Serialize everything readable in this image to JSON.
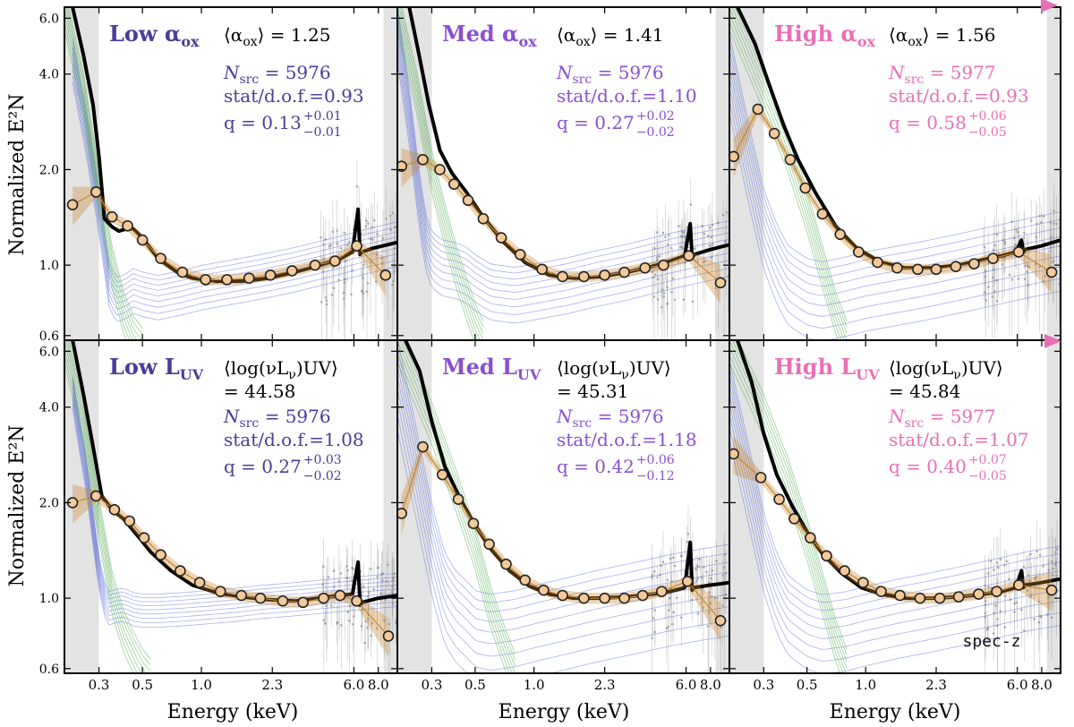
{
  "colors": {
    "low": "#4b3b9a",
    "med": "#8a4fd0",
    "high": "#e86fb5",
    "model_black": "#000000",
    "blue_component": "#3f55d6",
    "green_component": "#3aa23a",
    "stack_orange": "#c8862e",
    "stack_marker_fill": "#f3c99a",
    "band_shade": "#e3e3e3",
    "data_grey": "#9a9a9a"
  },
  "axes": {
    "ylabel": "Normalized E²N",
    "xlabel": "Energy (keV)",
    "x_ticks": [
      "0.3",
      "0.5",
      "1.0",
      "2.3",
      "6.0",
      "8.0"
    ],
    "y_ticks": [
      "0.6",
      "1.0",
      "2.0",
      "4.0",
      "6.0"
    ]
  },
  "annotation": {
    "spec_z": "spec-z"
  },
  "chart_data": [
    {
      "type": "line",
      "row": 1,
      "col": 1,
      "group": "low",
      "title": "Low α",
      "title_sub": "ox",
      "mean_line1": "⟨α",
      "mean_sub": "ox",
      "mean_line1_end": "⟩ = 1.25",
      "mean_line2": "",
      "nsrc": "N",
      "nsrc_sub": "src",
      "nsrc_val": " = 5976",
      "stat": "stat/d.o.f.=0.93",
      "q": "q = 0.13",
      "q_sup": "+0.01",
      "q_sub": "−0.01",
      "xlim": [
        0.2,
        10
      ],
      "ylim": [
        0.58,
        6.5
      ],
      "stack_points": {
        "x": [
          0.22,
          0.29,
          0.35,
          0.42,
          0.5,
          0.62,
          0.8,
          1.05,
          1.35,
          1.75,
          2.25,
          2.9,
          3.8,
          4.8,
          6.2,
          8.7
        ],
        "y": [
          1.55,
          1.7,
          1.42,
          1.33,
          1.2,
          1.05,
          0.95,
          0.9,
          0.9,
          0.91,
          0.93,
          0.96,
          1.0,
          1.03,
          1.15,
          0.93
        ]
      },
      "model": {
        "x": [
          0.22,
          0.25,
          0.28,
          0.3,
          0.32,
          0.35,
          0.38,
          0.41,
          0.45,
          0.5,
          0.6,
          0.75,
          0.9,
          1.2,
          1.6,
          2.2,
          3.0,
          4.0,
          5.0,
          5.9,
          6.3,
          6.45,
          6.6,
          7.5,
          10.0
        ],
        "y": [
          6.5,
          4.6,
          3.2,
          2.2,
          1.4,
          1.32,
          1.28,
          1.3,
          1.3,
          1.22,
          1.05,
          0.95,
          0.91,
          0.89,
          0.89,
          0.91,
          0.95,
          1.0,
          1.04,
          1.1,
          1.5,
          1.08,
          1.1,
          1.13,
          1.18
        ]
      },
      "blue": {
        "x": [
          0.22,
          0.26,
          0.3,
          0.34,
          0.37,
          0.4,
          0.45,
          0.5,
          0.6,
          0.8,
          1.0,
          1.5,
          2.0,
          3.0,
          5.0,
          7.0,
          10.0
        ],
        "y": [
          4.5,
          2.6,
          1.5,
          0.86,
          0.79,
          0.8,
          0.84,
          0.82,
          0.8,
          0.83,
          0.86,
          0.9,
          0.93,
          0.98,
          1.06,
          1.12,
          1.18
        ]
      },
      "blue_spread": 0.04,
      "green": {
        "x": [
          0.2,
          0.25,
          0.3,
          0.35,
          0.4,
          0.45,
          0.5
        ],
        "y": [
          6.5,
          3.5,
          1.7,
          1.0,
          0.72,
          0.6,
          0.55
        ]
      }
    },
    {
      "type": "line",
      "row": 1,
      "col": 2,
      "group": "med",
      "title": "Med α",
      "title_sub": "ox",
      "mean_line1": "⟨α",
      "mean_sub": "ox",
      "mean_line1_end": "⟩ = 1.41",
      "mean_line2": "",
      "nsrc": "N",
      "nsrc_sub": "src",
      "nsrc_val": " = 5976",
      "stat": "stat/d.o.f.=1.10",
      "q": "q = 0.27",
      "q_sup": "+0.02",
      "q_sub": "−0.02",
      "xlim": [
        0.2,
        10
      ],
      "ylim": [
        0.58,
        6.5
      ],
      "stack_points": {
        "x": [
          0.21,
          0.27,
          0.33,
          0.39,
          0.46,
          0.55,
          0.68,
          0.85,
          1.1,
          1.4,
          1.8,
          2.3,
          2.9,
          3.7,
          4.6,
          6.2,
          9.0
        ],
        "y": [
          2.05,
          2.15,
          2.0,
          1.8,
          1.6,
          1.4,
          1.22,
          1.08,
          0.97,
          0.92,
          0.92,
          0.93,
          0.95,
          0.98,
          1.0,
          1.07,
          0.88
        ]
      },
      "model": {
        "x": [
          0.23,
          0.26,
          0.29,
          0.33,
          0.38,
          0.45,
          0.55,
          0.7,
          0.9,
          1.2,
          1.6,
          2.2,
          3.0,
          4.0,
          5.0,
          5.9,
          6.3,
          6.45,
          6.6,
          8.0,
          10.0
        ],
        "y": [
          6.5,
          4.5,
          3.2,
          2.3,
          1.95,
          1.7,
          1.42,
          1.18,
          1.02,
          0.93,
          0.91,
          0.92,
          0.95,
          0.99,
          1.03,
          1.07,
          1.35,
          1.05,
          1.08,
          1.12,
          1.16
        ]
      },
      "blue": {
        "x": [
          0.2,
          0.23,
          0.26,
          0.28,
          0.3,
          0.34,
          0.4,
          0.45,
          0.5,
          0.6,
          0.8,
          1.0,
          1.5,
          2.0,
          3.0,
          5.0,
          7.0,
          10.0
        ],
        "y": [
          5.5,
          3.0,
          1.6,
          1.2,
          1.06,
          1.0,
          0.98,
          0.95,
          0.9,
          0.84,
          0.82,
          0.84,
          0.88,
          0.92,
          0.97,
          1.05,
          1.1,
          1.15
        ]
      },
      "blue_spread": 0.05,
      "green": {
        "x": [
          0.2,
          0.25,
          0.3,
          0.35,
          0.4,
          0.45,
          0.5,
          0.55
        ],
        "y": [
          6.5,
          3.6,
          2.0,
          1.35,
          1.0,
          0.8,
          0.66,
          0.58
        ]
      }
    },
    {
      "type": "line",
      "row": 1,
      "col": 3,
      "group": "high",
      "title": "High α",
      "title_sub": "ox",
      "mean_line1": "⟨α",
      "mean_sub": "ox",
      "mean_line1_end": "⟩ = 1.56",
      "mean_line2": "",
      "nsrc": "N",
      "nsrc_sub": "src",
      "nsrc_val": " = 5977",
      "stat": "stat/d.o.f.=0.93",
      "q": "q = 0.58",
      "q_sup": "+0.06",
      "q_sub": "−0.05",
      "xlim": [
        0.2,
        10
      ],
      "ylim": [
        0.58,
        6.5
      ],
      "stack_points": {
        "x": [
          0.21,
          0.28,
          0.34,
          0.41,
          0.49,
          0.6,
          0.74,
          0.92,
          1.15,
          1.45,
          1.85,
          2.3,
          2.9,
          3.6,
          4.5,
          6.1,
          9.0
        ],
        "y": [
          2.2,
          3.1,
          2.6,
          2.15,
          1.75,
          1.45,
          1.25,
          1.1,
          1.02,
          0.98,
          0.97,
          0.97,
          0.99,
          1.01,
          1.05,
          1.1,
          0.95
        ]
      },
      "model": {
        "x": [
          0.22,
          0.27,
          0.32,
          0.38,
          0.45,
          0.55,
          0.7,
          0.9,
          1.2,
          1.6,
          2.2,
          3.0,
          4.0,
          5.0,
          5.9,
          6.3,
          6.45,
          6.6,
          8.0,
          10.0
        ],
        "y": [
          6.5,
          5.0,
          3.7,
          2.75,
          2.15,
          1.7,
          1.33,
          1.13,
          1.02,
          0.98,
          0.98,
          1.0,
          1.04,
          1.07,
          1.1,
          1.2,
          1.1,
          1.12,
          1.15,
          1.2
        ]
      },
      "blue": {
        "x": [
          0.2,
          0.25,
          0.3,
          0.35,
          0.4,
          0.5,
          0.6,
          0.8,
          1.0,
          1.5,
          2.0,
          3.0,
          5.0,
          7.0,
          10.0
        ],
        "y": [
          4.2,
          2.2,
          1.35,
          1.05,
          0.9,
          0.82,
          0.8,
          0.83,
          0.86,
          0.9,
          0.93,
          0.98,
          1.05,
          1.1,
          1.15
        ]
      },
      "blue_spread": 0.07,
      "green": {
        "x": [
          0.2,
          0.3,
          0.4,
          0.5,
          0.6,
          0.7,
          0.8
        ],
        "y": [
          6.5,
          3.6,
          2.3,
          1.5,
          1.0,
          0.72,
          0.58
        ]
      }
    },
    {
      "type": "line",
      "row": 2,
      "col": 1,
      "group": "low",
      "title": "Low L",
      "title_sub": "UV",
      "mean_line1": "⟨log(νL",
      "mean_sub": "ν",
      "mean_line1_end": ")UV⟩",
      "mean_line2": "= 44.58",
      "nsrc": "N",
      "nsrc_sub": "src",
      "nsrc_val": " = 5976",
      "stat": "stat/d.o.f.=1.08",
      "q": "q = 0.27",
      "q_sup": "+0.03",
      "q_sub": "−0.02",
      "xlim": [
        0.2,
        10
      ],
      "ylim": [
        0.58,
        6.5
      ],
      "stack_points": {
        "x": [
          0.22,
          0.29,
          0.36,
          0.43,
          0.51,
          0.62,
          0.78,
          0.98,
          1.25,
          1.6,
          2.0,
          2.6,
          3.3,
          4.2,
          5.1,
          6.2,
          9.0
        ],
        "y": [
          2.0,
          2.1,
          1.9,
          1.75,
          1.55,
          1.37,
          1.22,
          1.12,
          1.05,
          1.02,
          1.0,
          0.98,
          0.97,
          1.0,
          1.02,
          0.98,
          0.76
        ]
      },
      "model": {
        "x": [
          0.22,
          0.25,
          0.28,
          0.31,
          0.35,
          0.4,
          0.47,
          0.55,
          0.7,
          0.9,
          1.2,
          1.6,
          2.2,
          3.0,
          4.0,
          5.0,
          5.9,
          6.3,
          6.45,
          6.6,
          8.0,
          10.0
        ],
        "y": [
          6.5,
          4.4,
          3.0,
          2.1,
          1.9,
          1.78,
          1.58,
          1.4,
          1.22,
          1.1,
          1.04,
          1.01,
          0.99,
          0.98,
          1.0,
          1.02,
          1.03,
          1.3,
          0.95,
          0.97,
          1.0,
          1.02
        ]
      },
      "blue": {
        "x": [
          0.22,
          0.26,
          0.3,
          0.33,
          0.36,
          0.4,
          0.45,
          0.5,
          0.6,
          0.8,
          1.0,
          1.5,
          2.0,
          3.0,
          5.0,
          7.0,
          10.0
        ],
        "y": [
          4.5,
          2.4,
          1.2,
          0.93,
          0.95,
          0.96,
          0.93,
          0.92,
          0.92,
          0.93,
          0.94,
          0.96,
          0.98,
          1.0,
          1.03,
          1.05,
          1.07
        ]
      },
      "blue_spread": 0.03,
      "green": {
        "x": [
          0.2,
          0.25,
          0.3,
          0.35,
          0.4,
          0.45,
          0.5,
          0.55
        ],
        "y": [
          6.5,
          3.6,
          1.8,
          1.05,
          0.8,
          0.68,
          0.6,
          0.56
        ]
      }
    },
    {
      "type": "line",
      "row": 2,
      "col": 2,
      "group": "med",
      "title": "Med L",
      "title_sub": "UV",
      "mean_line1": "⟨log(νL",
      "mean_sub": "ν",
      "mean_line1_end": ")UV⟩",
      "mean_line2": "= 45.31",
      "nsrc": "N",
      "nsrc_sub": "src",
      "nsrc_val": " = 5976",
      "stat": "stat/d.o.f.=1.18",
      "q": "q = 0.42",
      "q_sup": "+0.06",
      "q_sub": "−0.12",
      "xlim": [
        0.2,
        10
      ],
      "ylim": [
        0.58,
        6.5
      ],
      "stack_points": {
        "x": [
          0.21,
          0.27,
          0.34,
          0.41,
          0.49,
          0.59,
          0.72,
          0.9,
          1.12,
          1.4,
          1.8,
          2.3,
          2.9,
          3.6,
          4.5,
          6.1,
          9.0
        ],
        "y": [
          1.85,
          3.0,
          2.45,
          2.05,
          1.72,
          1.48,
          1.28,
          1.14,
          1.06,
          1.02,
          1.0,
          1.0,
          1.0,
          1.02,
          1.05,
          1.13,
          0.85
        ]
      },
      "model": {
        "x": [
          0.22,
          0.26,
          0.3,
          0.35,
          0.42,
          0.5,
          0.6,
          0.75,
          0.95,
          1.2,
          1.6,
          2.2,
          3.0,
          4.0,
          5.0,
          5.9,
          6.3,
          6.45,
          6.6,
          8.0,
          10.0
        ],
        "y": [
          6.5,
          5.2,
          3.6,
          2.6,
          2.05,
          1.7,
          1.43,
          1.22,
          1.09,
          1.03,
          1.0,
          1.0,
          1.01,
          1.03,
          1.05,
          1.08,
          1.5,
          1.06,
          1.08,
          1.1,
          1.12
        ]
      },
      "blue": {
        "x": [
          0.2,
          0.25,
          0.3,
          0.35,
          0.4,
          0.45,
          0.5,
          0.6,
          0.8,
          1.0,
          1.5,
          2.0,
          3.0,
          5.0,
          7.0,
          10.0
        ],
        "y": [
          5.0,
          2.6,
          1.5,
          1.05,
          0.92,
          0.86,
          0.8,
          0.78,
          0.8,
          0.83,
          0.88,
          0.92,
          0.97,
          1.04,
          1.08,
          1.12
        ]
      },
      "blue_spread": 0.08,
      "green": {
        "x": [
          0.2,
          0.3,
          0.4,
          0.5,
          0.6,
          0.7,
          0.8
        ],
        "y": [
          6.5,
          3.6,
          2.2,
          1.45,
          0.95,
          0.72,
          0.58
        ]
      }
    },
    {
      "type": "line",
      "row": 2,
      "col": 3,
      "group": "high",
      "title": "High L",
      "title_sub": "UV",
      "mean_line1": "⟨log(νL",
      "mean_sub": "ν",
      "mean_line1_end": ")UV⟩",
      "mean_line2": "= 45.84",
      "nsrc": "N",
      "nsrc_sub": "src",
      "nsrc_val": " = 5977",
      "stat": "stat/d.o.f.=1.07",
      "q": "q = 0.40",
      "q_sup": "+0.07",
      "q_sub": "−0.05",
      "xlim": [
        0.2,
        10
      ],
      "ylim": [
        0.58,
        6.5
      ],
      "stack_points": {
        "x": [
          0.21,
          0.29,
          0.36,
          0.43,
          0.52,
          0.63,
          0.78,
          0.97,
          1.2,
          1.5,
          1.9,
          2.4,
          3.0,
          3.8,
          4.7,
          6.1,
          9.0
        ],
        "y": [
          2.85,
          2.4,
          2.05,
          1.78,
          1.55,
          1.36,
          1.22,
          1.12,
          1.05,
          1.02,
          1.0,
          1.0,
          1.01,
          1.03,
          1.05,
          1.1,
          1.06
        ]
      },
      "model": {
        "x": [
          0.22,
          0.26,
          0.3,
          0.35,
          0.42,
          0.5,
          0.6,
          0.75,
          0.95,
          1.2,
          1.6,
          2.2,
          3.0,
          4.0,
          5.0,
          5.9,
          6.3,
          6.45,
          6.6,
          8.0,
          10.0
        ],
        "y": [
          6.5,
          4.8,
          3.3,
          2.45,
          1.95,
          1.62,
          1.38,
          1.2,
          1.08,
          1.03,
          1.0,
          1.0,
          1.01,
          1.03,
          1.05,
          1.08,
          1.22,
          1.08,
          1.1,
          1.12,
          1.15
        ]
      },
      "blue": {
        "x": [
          0.2,
          0.25,
          0.3,
          0.35,
          0.4,
          0.5,
          0.6,
          0.8,
          1.0,
          1.5,
          2.0,
          3.0,
          5.0,
          7.0,
          10.0
        ],
        "y": [
          4.4,
          2.4,
          1.45,
          1.08,
          0.92,
          0.83,
          0.8,
          0.82,
          0.85,
          0.9,
          0.93,
          0.98,
          1.05,
          1.1,
          1.14
        ]
      },
      "blue_spread": 0.07,
      "green": {
        "x": [
          0.2,
          0.3,
          0.4,
          0.5,
          0.6,
          0.7,
          0.8
        ],
        "y": [
          6.5,
          3.8,
          2.4,
          1.55,
          1.05,
          0.75,
          0.6
        ]
      }
    }
  ]
}
